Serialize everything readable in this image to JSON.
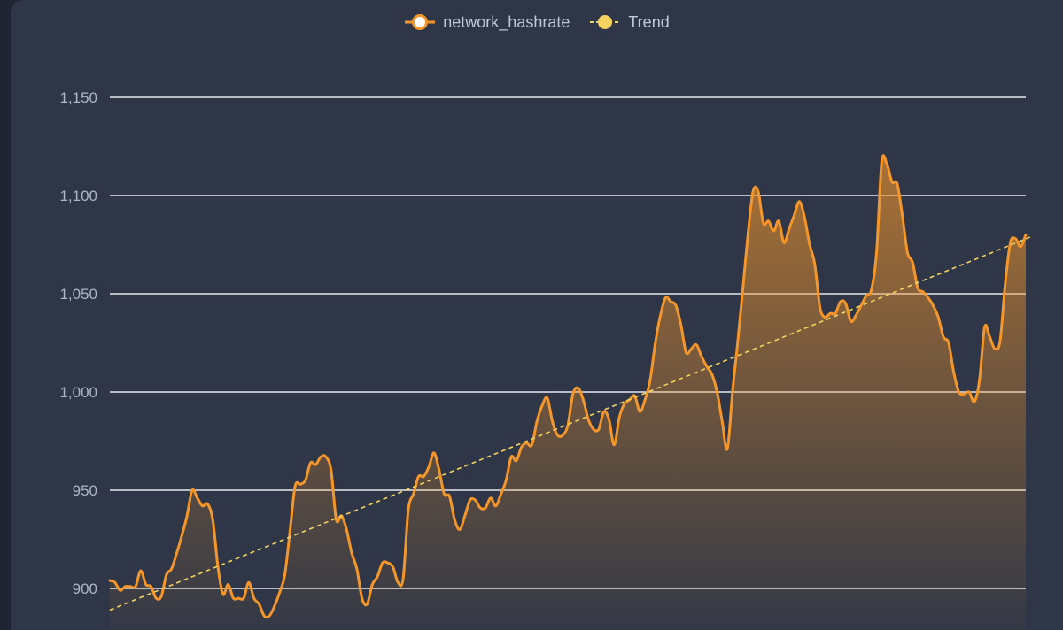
{
  "legend": {
    "series_label": "network_hashrate",
    "trend_label": "Trend"
  },
  "colors": {
    "background": "#2e3647",
    "series": "#f5962a",
    "trend": "#f4d35e",
    "grid": "#e6e9ef",
    "tick": "#aeb6c4"
  },
  "chart_data": {
    "type": "area",
    "title": "",
    "xlabel": "",
    "ylabel": "",
    "ylim": [
      880,
      1170
    ],
    "yticks": [
      900,
      950,
      1000,
      1050,
      1100,
      1150
    ],
    "ytick_labels": [
      "900",
      "950",
      "1,000",
      "1,050",
      "1,100",
      "1,150"
    ],
    "grid": true,
    "legend_position": "top-center",
    "series": [
      {
        "name": "network_hashrate",
        "values": [
          904,
          903,
          899,
          901,
          901,
          901,
          909,
          902,
          901,
          895,
          896,
          907,
          910,
          918,
          927,
          937,
          950,
          946,
          942,
          943,
          935,
          911,
          897,
          902,
          895,
          895,
          895,
          903,
          895,
          892,
          886,
          886,
          891,
          898,
          907,
          929,
          952,
          953,
          955,
          964,
          963,
          967,
          967,
          960,
          935,
          937,
          930,
          918,
          910,
          895,
          892,
          902,
          906,
          913,
          913,
          911,
          903,
          905,
          940,
          948,
          957,
          957,
          962,
          969,
          960,
          948,
          947,
          935,
          930,
          937,
          945,
          945,
          941,
          941,
          946,
          942,
          948,
          955,
          967,
          965,
          972,
          974,
          973,
          985,
          993,
          997,
          985,
          978,
          978,
          983,
          999,
          1002,
          996,
          986,
          981,
          981,
          990,
          986,
          973,
          987,
          994,
          996,
          998,
          990,
          996,
          1006,
          1025,
          1039,
          1048,
          1046,
          1044,
          1034,
          1020,
          1022,
          1024,
          1018,
          1013,
          1009,
          1000,
          985,
          971,
          1000,
          1025,
          1052,
          1080,
          1102,
          1102,
          1086,
          1087,
          1082,
          1087,
          1076,
          1083,
          1090,
          1097,
          1089,
          1075,
          1065,
          1043,
          1038,
          1040,
          1040,
          1046,
          1045,
          1036,
          1039,
          1044,
          1049,
          1052,
          1071,
          1117,
          1116,
          1107,
          1106,
          1090,
          1071,
          1066,
          1053,
          1051,
          1048,
          1044,
          1038,
          1028,
          1025,
          1010,
          1000,
          999,
          1000,
          995,
          1006,
          1033,
          1028,
          1022,
          1026,
          1055,
          1076,
          1078,
          1074,
          1080
        ]
      },
      {
        "name": "Trend",
        "style": "dashed",
        "x": [
          0,
          179
        ],
        "values": [
          889,
          1079
        ]
      }
    ]
  }
}
